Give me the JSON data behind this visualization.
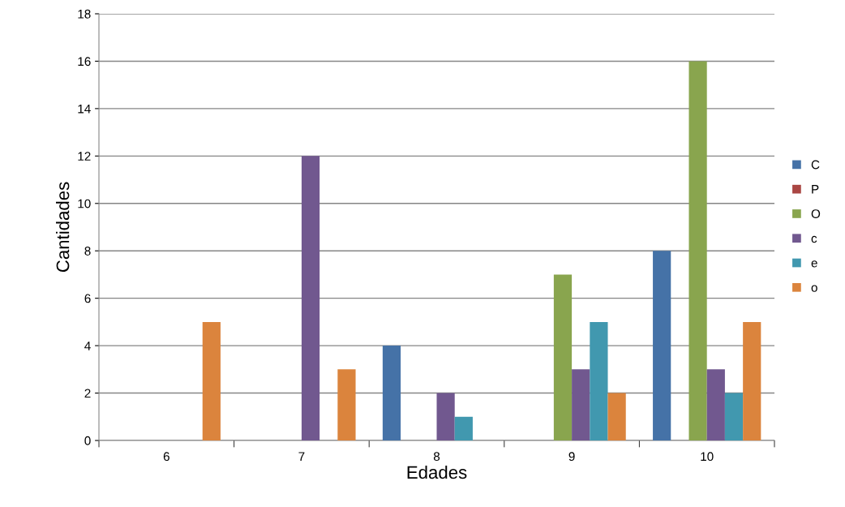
{
  "chart_data": {
    "type": "bar",
    "xlabel": "Edades",
    "ylabel": "Cantidades",
    "categories": [
      "6",
      "7",
      "8",
      "9",
      "10"
    ],
    "series": [
      {
        "name": "C",
        "color": "#4572a7",
        "values": [
          0,
          0,
          4,
          0,
          8
        ]
      },
      {
        "name": "P",
        "color": "#aa4643",
        "values": [
          0,
          0,
          0,
          0,
          0
        ]
      },
      {
        "name": "O",
        "color": "#89a54e",
        "values": [
          0,
          0,
          0,
          7,
          16
        ]
      },
      {
        "name": "c",
        "color": "#71588f",
        "values": [
          0,
          12,
          2,
          3,
          3
        ]
      },
      {
        "name": "e",
        "color": "#4198af",
        "values": [
          0,
          0,
          1,
          5,
          2
        ]
      },
      {
        "name": "o",
        "color": "#db843d",
        "values": [
          5,
          3,
          0,
          2,
          5
        ]
      }
    ],
    "ylim": [
      0,
      18
    ],
    "yticks": [
      0,
      2,
      4,
      6,
      8,
      10,
      12,
      14,
      16,
      18
    ],
    "grid": "y",
    "legend": "right"
  }
}
